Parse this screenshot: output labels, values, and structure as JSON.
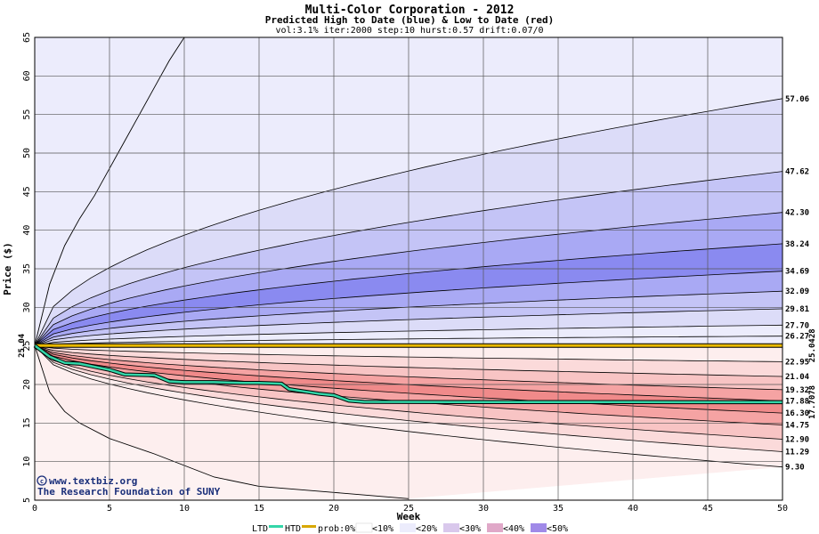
{
  "header": {
    "title": "Multi-Color Corporation - 2012",
    "subtitle": "Predicted High to Date (blue) &  Low to Date (red)",
    "params": "vol:3.1% iter:2000 step:10 hurst:0.57 drift:0.07/0"
  },
  "credit": {
    "line1": "www.textbiz.org",
    "line2": "The Research Foundation of SUNY"
  },
  "legend": {
    "ltd": "LTD",
    "htd": "HTD",
    "prob": "prob:0%",
    "p10": "<10%",
    "p20": "<20%",
    "p30": "<30%",
    "p40": "<40%",
    "p50": "<50%"
  },
  "chart_data": {
    "type": "area",
    "title": "Multi-Color Corporation - 2012",
    "subtitle": "Predicted High to Date (blue) &  Low to Date (red)",
    "xlabel": "Week",
    "ylabel": "Price ($)",
    "xlim": [
      0,
      50
    ],
    "ylim": [
      5,
      65
    ],
    "x_ticks": [
      0,
      5,
      10,
      15,
      20,
      25,
      30,
      35,
      40,
      45,
      50
    ],
    "y_ticks": [
      5,
      10,
      15,
      20,
      25,
      30,
      35,
      40,
      45,
      50,
      55,
      60,
      65
    ],
    "grid": true,
    "start_price": "25.04",
    "start_value": 25.04,
    "htd_final_label": "25.0428",
    "htd_final": 25.0428,
    "ltd_final_label": "17.7078",
    "ltd_final": 17.7078,
    "high_labels": [
      "57.06",
      "47.62",
      "42.30",
      "38.24",
      "34.69",
      "32.09",
      "29.81",
      "27.70",
      "26.27"
    ],
    "high_finals": [
      57.06,
      47.62,
      42.3,
      38.24,
      34.69,
      32.09,
      29.81,
      27.7,
      26.27
    ],
    "low_labels": [
      "22.95",
      "21.04",
      "19.32",
      "17.88",
      "16.30",
      "14.75",
      "12.90",
      "11.29",
      "9.30"
    ],
    "low_finals": [
      22.95,
      21.04,
      19.32,
      17.88,
      16.3,
      14.75,
      12.9,
      11.29,
      9.3
    ],
    "high_band_colors": [
      "#ececfc",
      "#dcdcf8",
      "#c4c4f6",
      "#a9a9f4",
      "#8a8af0",
      "#a9a9f4",
      "#c4c4f6",
      "#dcdcf8",
      "#ececfc"
    ],
    "low_band_colors": [
      "#fdeeee",
      "#fbdada",
      "#f8c4c4",
      "#f5a3a3",
      "#f08a8a",
      "#f5a3a3",
      "#f8c4c4",
      "#fbdada",
      "#fdeeee"
    ],
    "extreme_upper": {
      "x": [
        0,
        1,
        2,
        3,
        4,
        5,
        6,
        7,
        8,
        9,
        10
      ],
      "values": [
        25.04,
        33,
        38,
        41.5,
        44.5,
        48,
        51.5,
        55,
        58.5,
        62,
        65
      ]
    },
    "extreme_lower": {
      "x": [
        0,
        1,
        2,
        3,
        5,
        8,
        10,
        12,
        15,
        20,
        25
      ],
      "values": [
        25.04,
        19,
        16.5,
        15,
        13,
        11,
        9.5,
        8,
        6.8,
        6,
        5.2
      ]
    },
    "ltd_path": {
      "x": [
        0,
        1,
        2,
        3,
        4,
        5,
        6,
        8,
        9,
        10,
        12,
        14,
        15,
        16.5,
        17,
        18,
        19,
        20,
        21,
        22,
        30,
        40,
        50
      ],
      "values": [
        25.04,
        23.6,
        22.8,
        22.7,
        22.3,
        21.9,
        21.3,
        21.2,
        20.4,
        20.3,
        20.3,
        20.2,
        20.2,
        20.1,
        19.4,
        19.1,
        18.8,
        18.6,
        17.9,
        17.75,
        17.72,
        17.71,
        17.7078
      ]
    },
    "htd_path": {
      "x": [
        0,
        50
      ],
      "values": [
        25.04,
        25.0428
      ]
    }
  }
}
